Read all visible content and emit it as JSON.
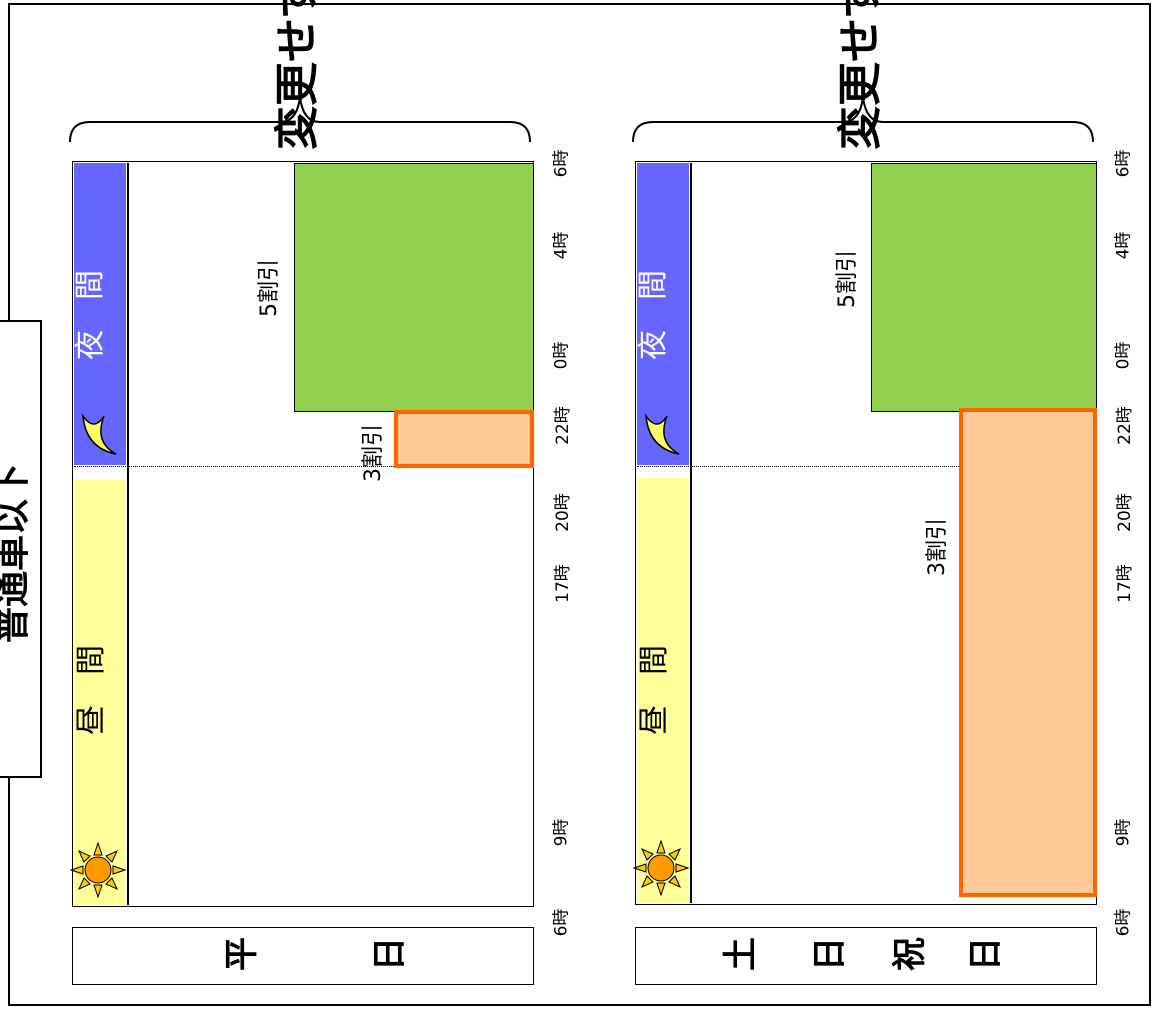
{
  "vehicle_class": "普通車以下",
  "panels": [
    {
      "id": "weekday",
      "header": "変更せず",
      "day_chars": [
        "平",
        "日"
      ],
      "period_day": "昼　間",
      "period_night": "夜　間",
      "discount_night": "5割引",
      "discount_evening": "3割引",
      "time_labels": [
        "6時",
        "9時",
        "17時",
        "20時",
        "22時",
        "0時",
        "4時",
        "6時"
      ]
    },
    {
      "id": "weekend-holiday",
      "header": "変更せず",
      "day_chars": [
        "土",
        "日",
        "祝",
        "日"
      ],
      "period_day": "昼　間",
      "period_night": "夜　間",
      "discount_night": "5割引",
      "discount_evening": "3割引",
      "time_labels": [
        "6時",
        "9時",
        "17時",
        "20時",
        "22時",
        "0時",
        "4時",
        "6時"
      ]
    }
  ],
  "icons": {
    "sun": "sun-icon",
    "moon": "crescent-moon-icon"
  },
  "colors": {
    "day_band": "#ffff99",
    "night_band": "#6666ff",
    "five_discount": "#92d050",
    "three_discount_fill": "#ffc999",
    "three_discount_border": "#ff6600"
  }
}
